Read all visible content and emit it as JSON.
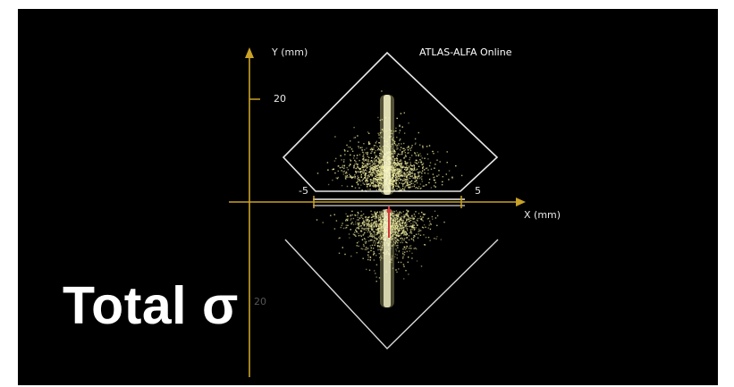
{
  "plot": {
    "title": "ATLAS-ALFA Online",
    "y_axis_label": "Y (mm)",
    "x_axis_label": "X (mm)",
    "y_tick_top": "20",
    "y_tick_bottom": "20",
    "x_tick_left": "-5",
    "x_tick_right": "5"
  },
  "caption": {
    "text": "Total σ"
  },
  "colors": {
    "background": "#000000",
    "axis": "#c9a227",
    "detector_outline": "#e6e6e6",
    "hits": "#e9e59a",
    "hits_dense": "#fbfadd",
    "marker": "#d23a3a"
  }
}
